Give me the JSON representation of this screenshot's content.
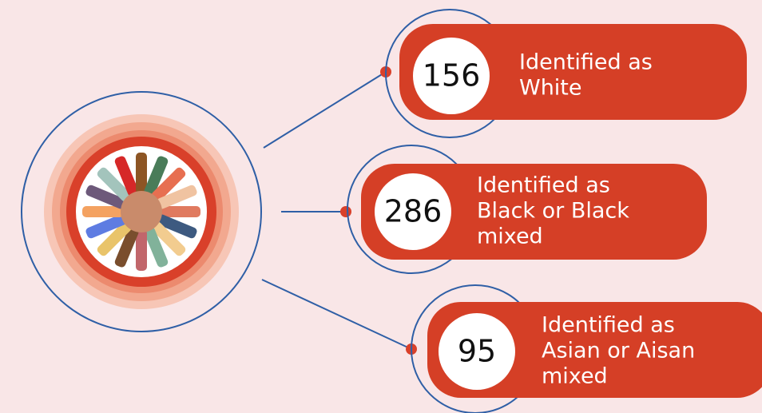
{
  "items": [
    {
      "number": 156,
      "lines": [
        "Identified as",
        "White"
      ]
    },
    {
      "number": 286,
      "lines": [
        "Identified as",
        "Black or Black",
        "mixed"
      ]
    },
    {
      "number": 95,
      "lines": [
        "Identified as",
        "Asian or Aisan",
        "mixed"
      ]
    }
  ]
}
